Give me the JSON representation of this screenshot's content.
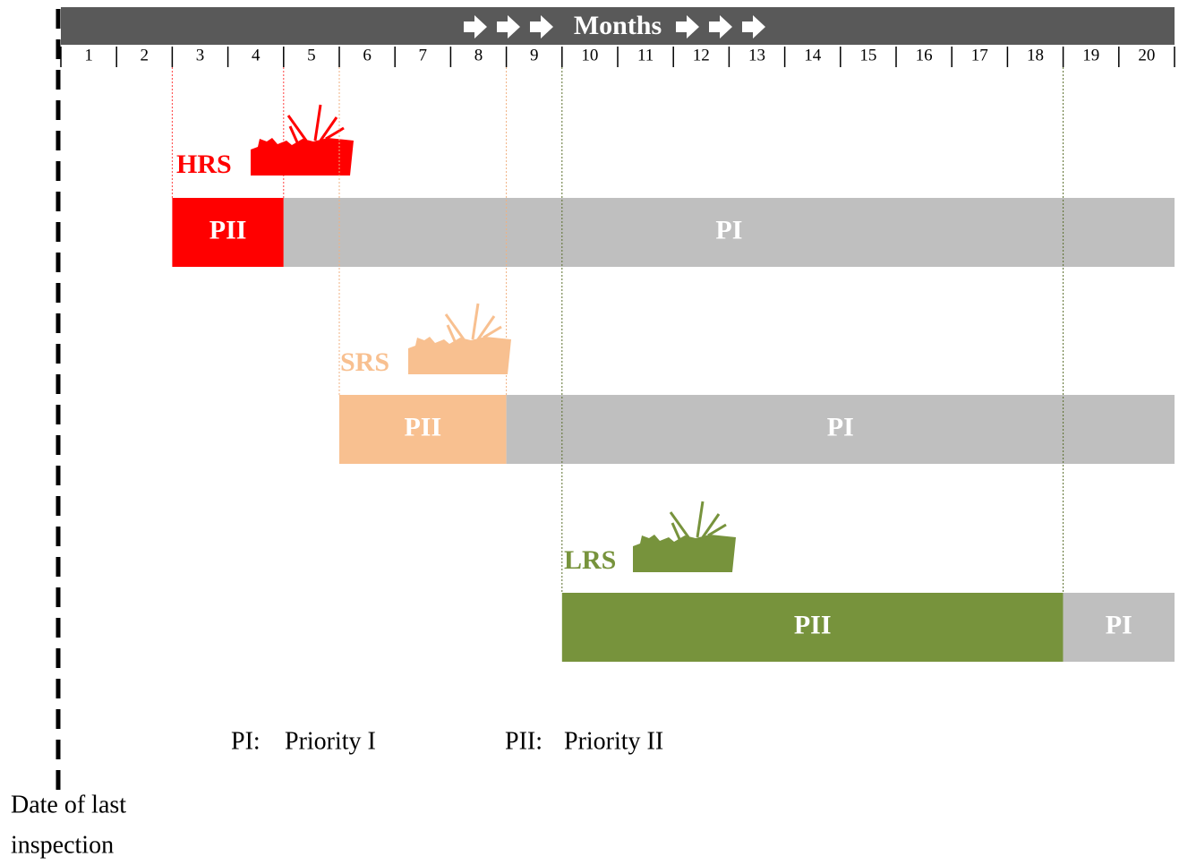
{
  "header": {
    "title": "Months",
    "months": [
      1,
      2,
      3,
      4,
      5,
      6,
      7,
      8,
      9,
      10,
      11,
      12,
      13,
      14,
      15,
      16,
      17,
      18,
      19,
      20
    ]
  },
  "rows": [
    {
      "label": "HRS",
      "segments": [
        "PII",
        "PI"
      ]
    },
    {
      "label": "SRS",
      "segments": [
        "PII",
        "PI"
      ]
    },
    {
      "label": "LRS",
      "segments": [
        "PII",
        "PI"
      ]
    }
  ],
  "legend": [
    {
      "key": "PI:",
      "text": "Priority I"
    },
    {
      "key": "PII:",
      "text": "Priority II"
    }
  ],
  "footer": {
    "lines": [
      "Date of last",
      "inspection"
    ]
  }
}
